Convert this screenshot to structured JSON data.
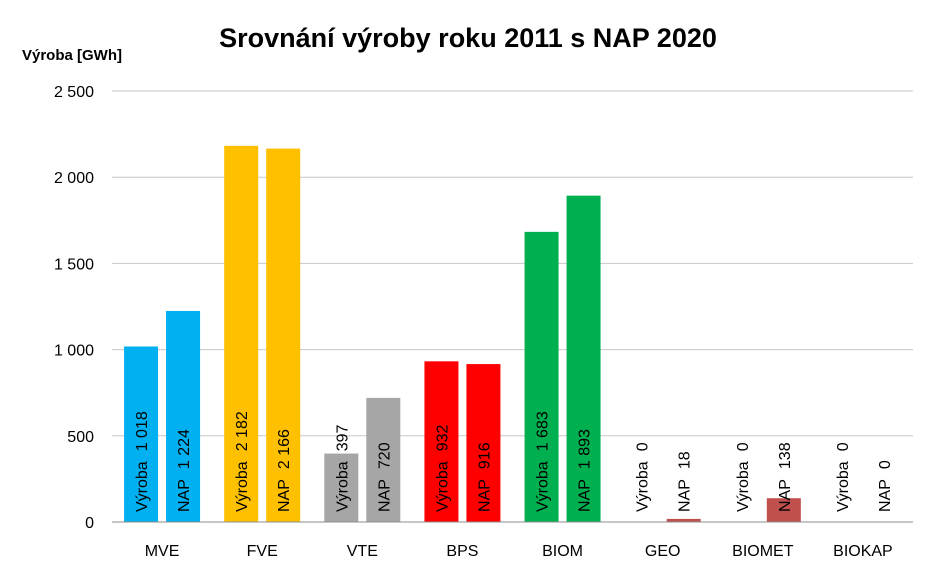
{
  "chart_data": {
    "type": "bar",
    "title": "Srovnání  výroby roku 2011 s NAP 2020",
    "ylabel": "Výroba [GWh]",
    "ylim": [
      0,
      2500
    ],
    "yticks": [
      0,
      500,
      1000,
      1500,
      2000,
      2500
    ],
    "ytick_labels": [
      "0",
      "500",
      "1 000",
      "1 500",
      "2 000",
      "2 500"
    ],
    "grid": true,
    "categories": [
      "MVE",
      "FVE",
      "VTE",
      "BPS",
      "BIOM",
      "GEO",
      "BIOMET",
      "BIOKAP"
    ],
    "series": [
      {
        "name": "Výroba",
        "values": [
          1018,
          2182,
          397,
          932,
          1683,
          0,
          0,
          0
        ],
        "value_labels": [
          "1 018",
          "2 182",
          "397",
          "932",
          "1 683",
          "0",
          "0",
          "0"
        ]
      },
      {
        "name": "NAP",
        "values": [
          1224,
          2166,
          720,
          916,
          1893,
          18,
          138,
          0
        ],
        "value_labels": [
          "1 224",
          "2 166",
          "720",
          "916",
          "1 893",
          "18",
          "138",
          "0"
        ]
      }
    ],
    "category_colors": [
      "#00b0f0",
      "#ffc000",
      "#a6a6a6",
      "#ff0000",
      "#00b050",
      "#c0504d",
      "#c0504d",
      "#c0504d"
    ]
  }
}
